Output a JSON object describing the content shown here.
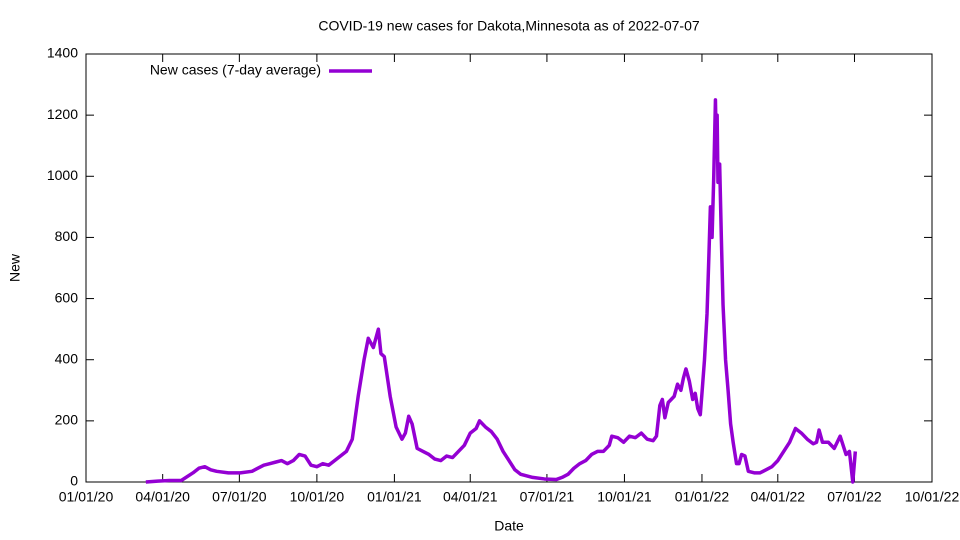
{
  "chart_data": {
    "type": "line",
    "title": "COVID-19 new cases for Dakota,Minnesota as of 2022-07-07",
    "x_label": "Date",
    "y_label": "New",
    "legend": "top-left",
    "grid": false,
    "xlim": [
      "2020-01-01",
      "2022-10-01"
    ],
    "xticks": [
      {
        "value": "2020-01-01",
        "label": "01/01/20"
      },
      {
        "value": "2020-04-01",
        "label": "04/01/20"
      },
      {
        "value": "2020-07-01",
        "label": "07/01/20"
      },
      {
        "value": "2020-10-01",
        "label": "10/01/20"
      },
      {
        "value": "2021-01-01",
        "label": "01/01/21"
      },
      {
        "value": "2021-04-01",
        "label": "04/01/21"
      },
      {
        "value": "2021-07-01",
        "label": "07/01/21"
      },
      {
        "value": "2021-10-01",
        "label": "10/01/21"
      },
      {
        "value": "2022-01-01",
        "label": "01/01/22"
      },
      {
        "value": "2022-04-01",
        "label": "04/01/22"
      },
      {
        "value": "2022-07-01",
        "label": "07/01/22"
      },
      {
        "value": "2022-10-01",
        "label": "10/01/22"
      }
    ],
    "ylim": [
      0,
      1400
    ],
    "yticks": [
      0,
      200,
      400,
      600,
      800,
      1000,
      1200,
      1400
    ],
    "x": [
      "2020-03-12",
      "2020-03-26",
      "2020-04-09",
      "2020-04-23",
      "2020-05-07",
      "2020-05-14",
      "2020-05-21",
      "2020-05-28",
      "2020-06-04",
      "2020-06-18",
      "2020-07-02",
      "2020-07-16",
      "2020-07-23",
      "2020-07-30",
      "2020-08-06",
      "2020-08-13",
      "2020-08-20",
      "2020-08-27",
      "2020-09-03",
      "2020-09-10",
      "2020-09-17",
      "2020-09-24",
      "2020-10-01",
      "2020-10-08",
      "2020-10-15",
      "2020-10-22",
      "2020-10-29",
      "2020-11-05",
      "2020-11-12",
      "2020-11-19",
      "2020-11-26",
      "2020-12-01",
      "2020-12-07",
      "2020-12-10",
      "2020-12-13",
      "2020-12-16",
      "2020-12-20",
      "2020-12-27",
      "2021-01-03",
      "2021-01-10",
      "2021-01-14",
      "2021-01-18",
      "2021-01-22",
      "2021-01-28",
      "2021-02-04",
      "2021-02-11",
      "2021-02-18",
      "2021-02-25",
      "2021-03-04",
      "2021-03-11",
      "2021-03-18",
      "2021-03-25",
      "2021-04-01",
      "2021-04-08",
      "2021-04-12",
      "2021-04-19",
      "2021-04-26",
      "2021-05-03",
      "2021-05-10",
      "2021-05-17",
      "2021-05-24",
      "2021-05-31",
      "2021-06-14",
      "2021-06-28",
      "2021-07-12",
      "2021-07-19",
      "2021-07-26",
      "2021-08-02",
      "2021-08-09",
      "2021-08-16",
      "2021-08-23",
      "2021-08-30",
      "2021-09-06",
      "2021-09-13",
      "2021-09-16",
      "2021-09-23",
      "2021-09-30",
      "2021-10-07",
      "2021-10-14",
      "2021-10-21",
      "2021-10-28",
      "2021-11-04",
      "2021-11-08",
      "2021-11-12",
      "2021-11-15",
      "2021-11-18",
      "2021-11-22",
      "2021-11-29",
      "2021-12-03",
      "2021-12-07",
      "2021-12-10",
      "2021-12-13",
      "2021-12-17",
      "2021-12-21",
      "2021-12-24",
      "2021-12-27",
      "2021-12-30",
      "2022-01-01",
      "2022-01-04",
      "2022-01-07",
      "2022-01-09",
      "2022-01-11",
      "2022-01-13",
      "2022-01-15",
      "2022-01-17",
      "2022-01-18",
      "2022-01-19",
      "2022-01-20",
      "2022-01-22",
      "2022-01-24",
      "2022-01-26",
      "2022-01-29",
      "2022-02-01",
      "2022-02-04",
      "2022-02-07",
      "2022-02-11",
      "2022-02-14",
      "2022-02-17",
      "2022-02-21",
      "2022-02-25",
      "2022-03-04",
      "2022-03-11",
      "2022-03-18",
      "2022-03-25",
      "2022-04-01",
      "2022-04-08",
      "2022-04-15",
      "2022-04-22",
      "2022-04-29",
      "2022-05-06",
      "2022-05-13",
      "2022-05-17",
      "2022-05-20",
      "2022-05-24",
      "2022-05-31",
      "2022-06-07",
      "2022-06-14",
      "2022-06-21",
      "2022-06-25",
      "2022-06-29",
      "2022-07-02"
    ],
    "series": [
      {
        "name": "New cases (7-day average)",
        "color": "#9400d3",
        "values": [
          0,
          3,
          5,
          5,
          30,
          45,
          50,
          40,
          35,
          30,
          30,
          35,
          45,
          55,
          60,
          65,
          70,
          60,
          70,
          90,
          85,
          55,
          50,
          60,
          55,
          70,
          85,
          100,
          140,
          280,
          400,
          470,
          440,
          470,
          500,
          420,
          410,
          280,
          180,
          140,
          160,
          215,
          190,
          110,
          100,
          90,
          75,
          70,
          85,
          80,
          100,
          120,
          160,
          175,
          200,
          180,
          165,
          140,
          100,
          70,
          40,
          25,
          15,
          10,
          8,
          15,
          25,
          45,
          60,
          70,
          90,
          100,
          100,
          120,
          150,
          145,
          130,
          150,
          145,
          160,
          140,
          135,
          150,
          250,
          270,
          210,
          260,
          280,
          320,
          300,
          340,
          370,
          330,
          270,
          290,
          240,
          220,
          290,
          400,
          550,
          720,
          900,
          800,
          1000,
          1250,
          1100,
          1200,
          980,
          1040,
          800,
          580,
          400,
          300,
          190,
          130,
          60,
          60,
          90,
          85,
          35,
          30,
          30,
          40,
          50,
          70,
          100,
          130,
          175,
          160,
          140,
          125,
          130,
          170,
          130,
          130,
          110,
          150,
          90,
          100,
          0,
          100
        ]
      }
    ]
  }
}
